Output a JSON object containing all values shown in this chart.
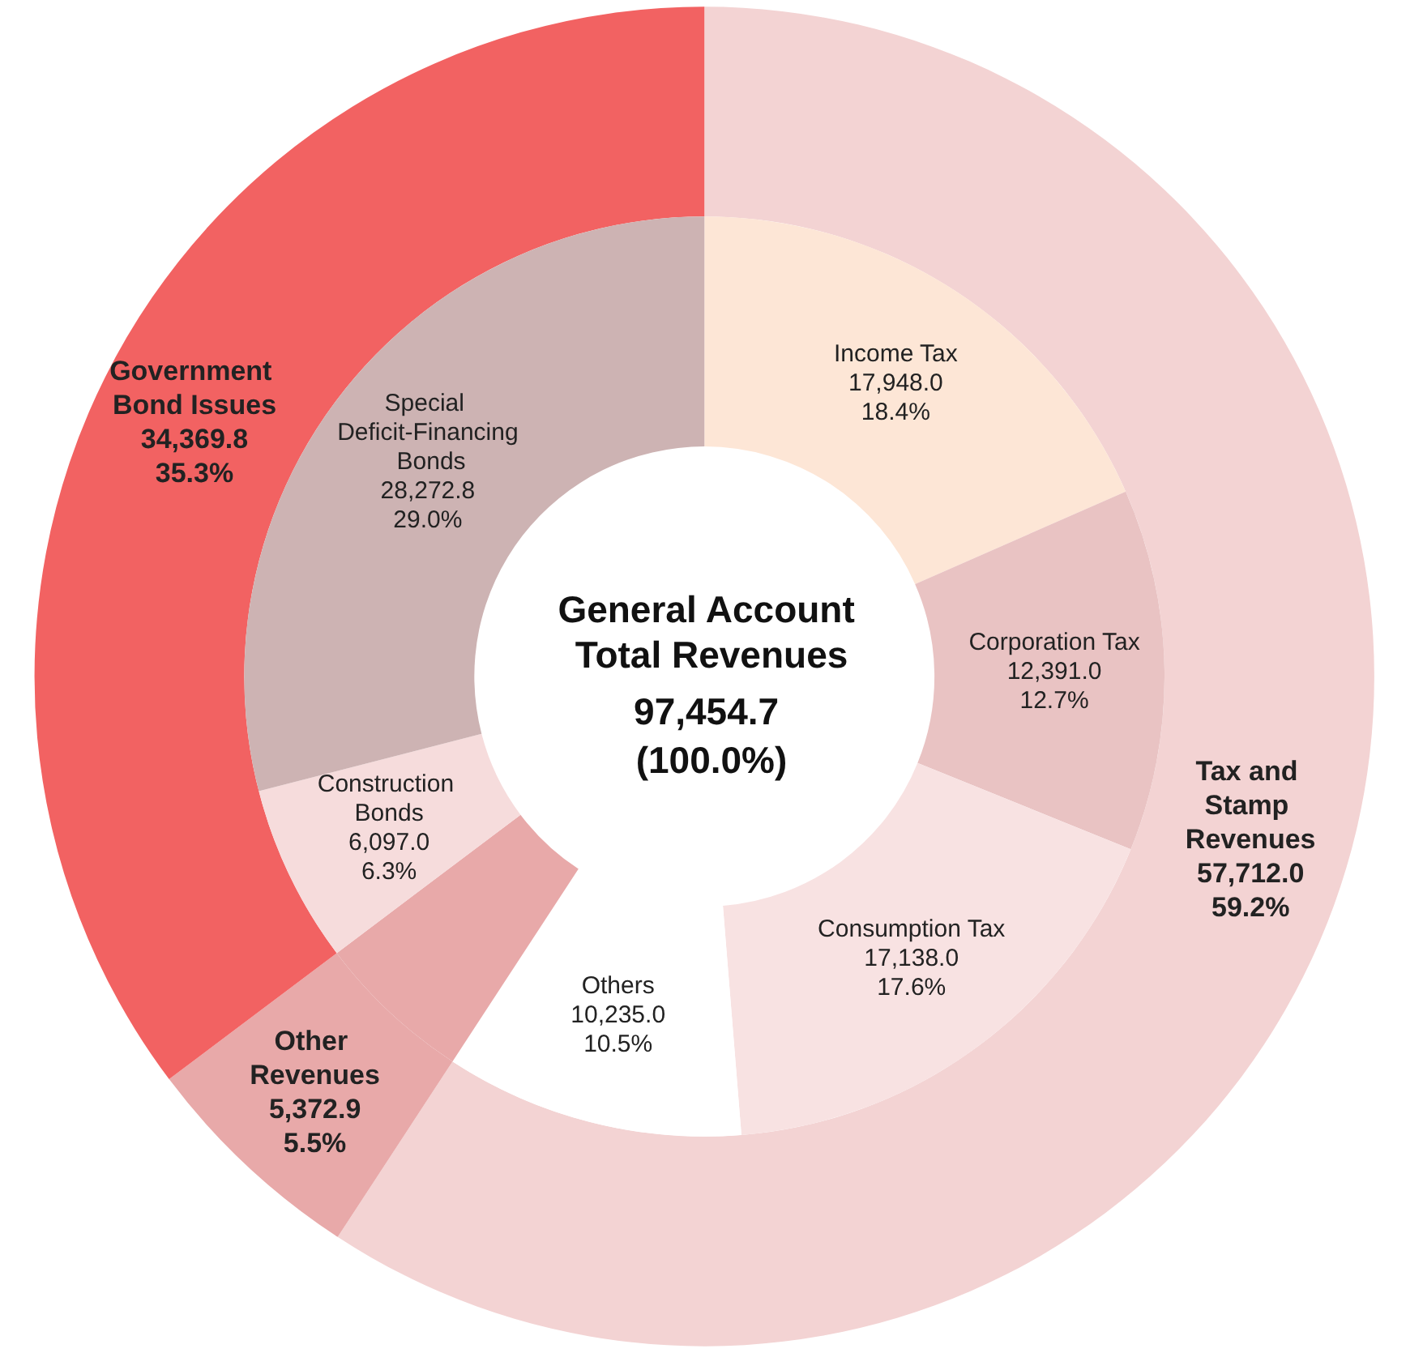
{
  "chart_data": [
    {
      "type": "donut",
      "legend": false,
      "categories": [
        "Tax and Stamp Revenues",
        "Other Revenues",
        "Government Bond Issues"
      ],
      "values": [
        57712.0,
        5372.9,
        34369.8
      ],
      "colors": [
        "#f3d3d3",
        "#e8a9a9",
        "#f26262"
      ],
      "value_labels": [
        "57,712.0\n59.2%",
        "5,372.9\n5.5%",
        "34,369.8\n35.3%"
      ]
    },
    {
      "type": "donut",
      "title": "General Account Total Revenues",
      "subtitle": "97,454.7 (100.0%)",
      "legend": false,
      "categories": [
        "Income Tax",
        "Corporation Tax",
        "Consumption Tax",
        "Others",
        null,
        "Construction Bonds",
        "Special Deficit-Financing Bonds"
      ],
      "values": [
        17948.0,
        12391.0,
        17138.0,
        10235.0,
        5372.9,
        6097.0,
        28272.8
      ],
      "colors": [
        "#fde6d6",
        "#e9c3c3",
        "#f8e2e2",
        "#ffffff",
        "#e8a9a9",
        "#f6dcdc",
        "#cdb3b3"
      ],
      "value_labels": [
        "17,948.0\n18.4%",
        "12,391.0\n12.7%",
        "17,138.0\n17.6%",
        "10,235.0\n10.5%",
        null,
        "6,097.0\n6.3%",
        "28,272.8\n29.0%"
      ]
    }
  ]
}
